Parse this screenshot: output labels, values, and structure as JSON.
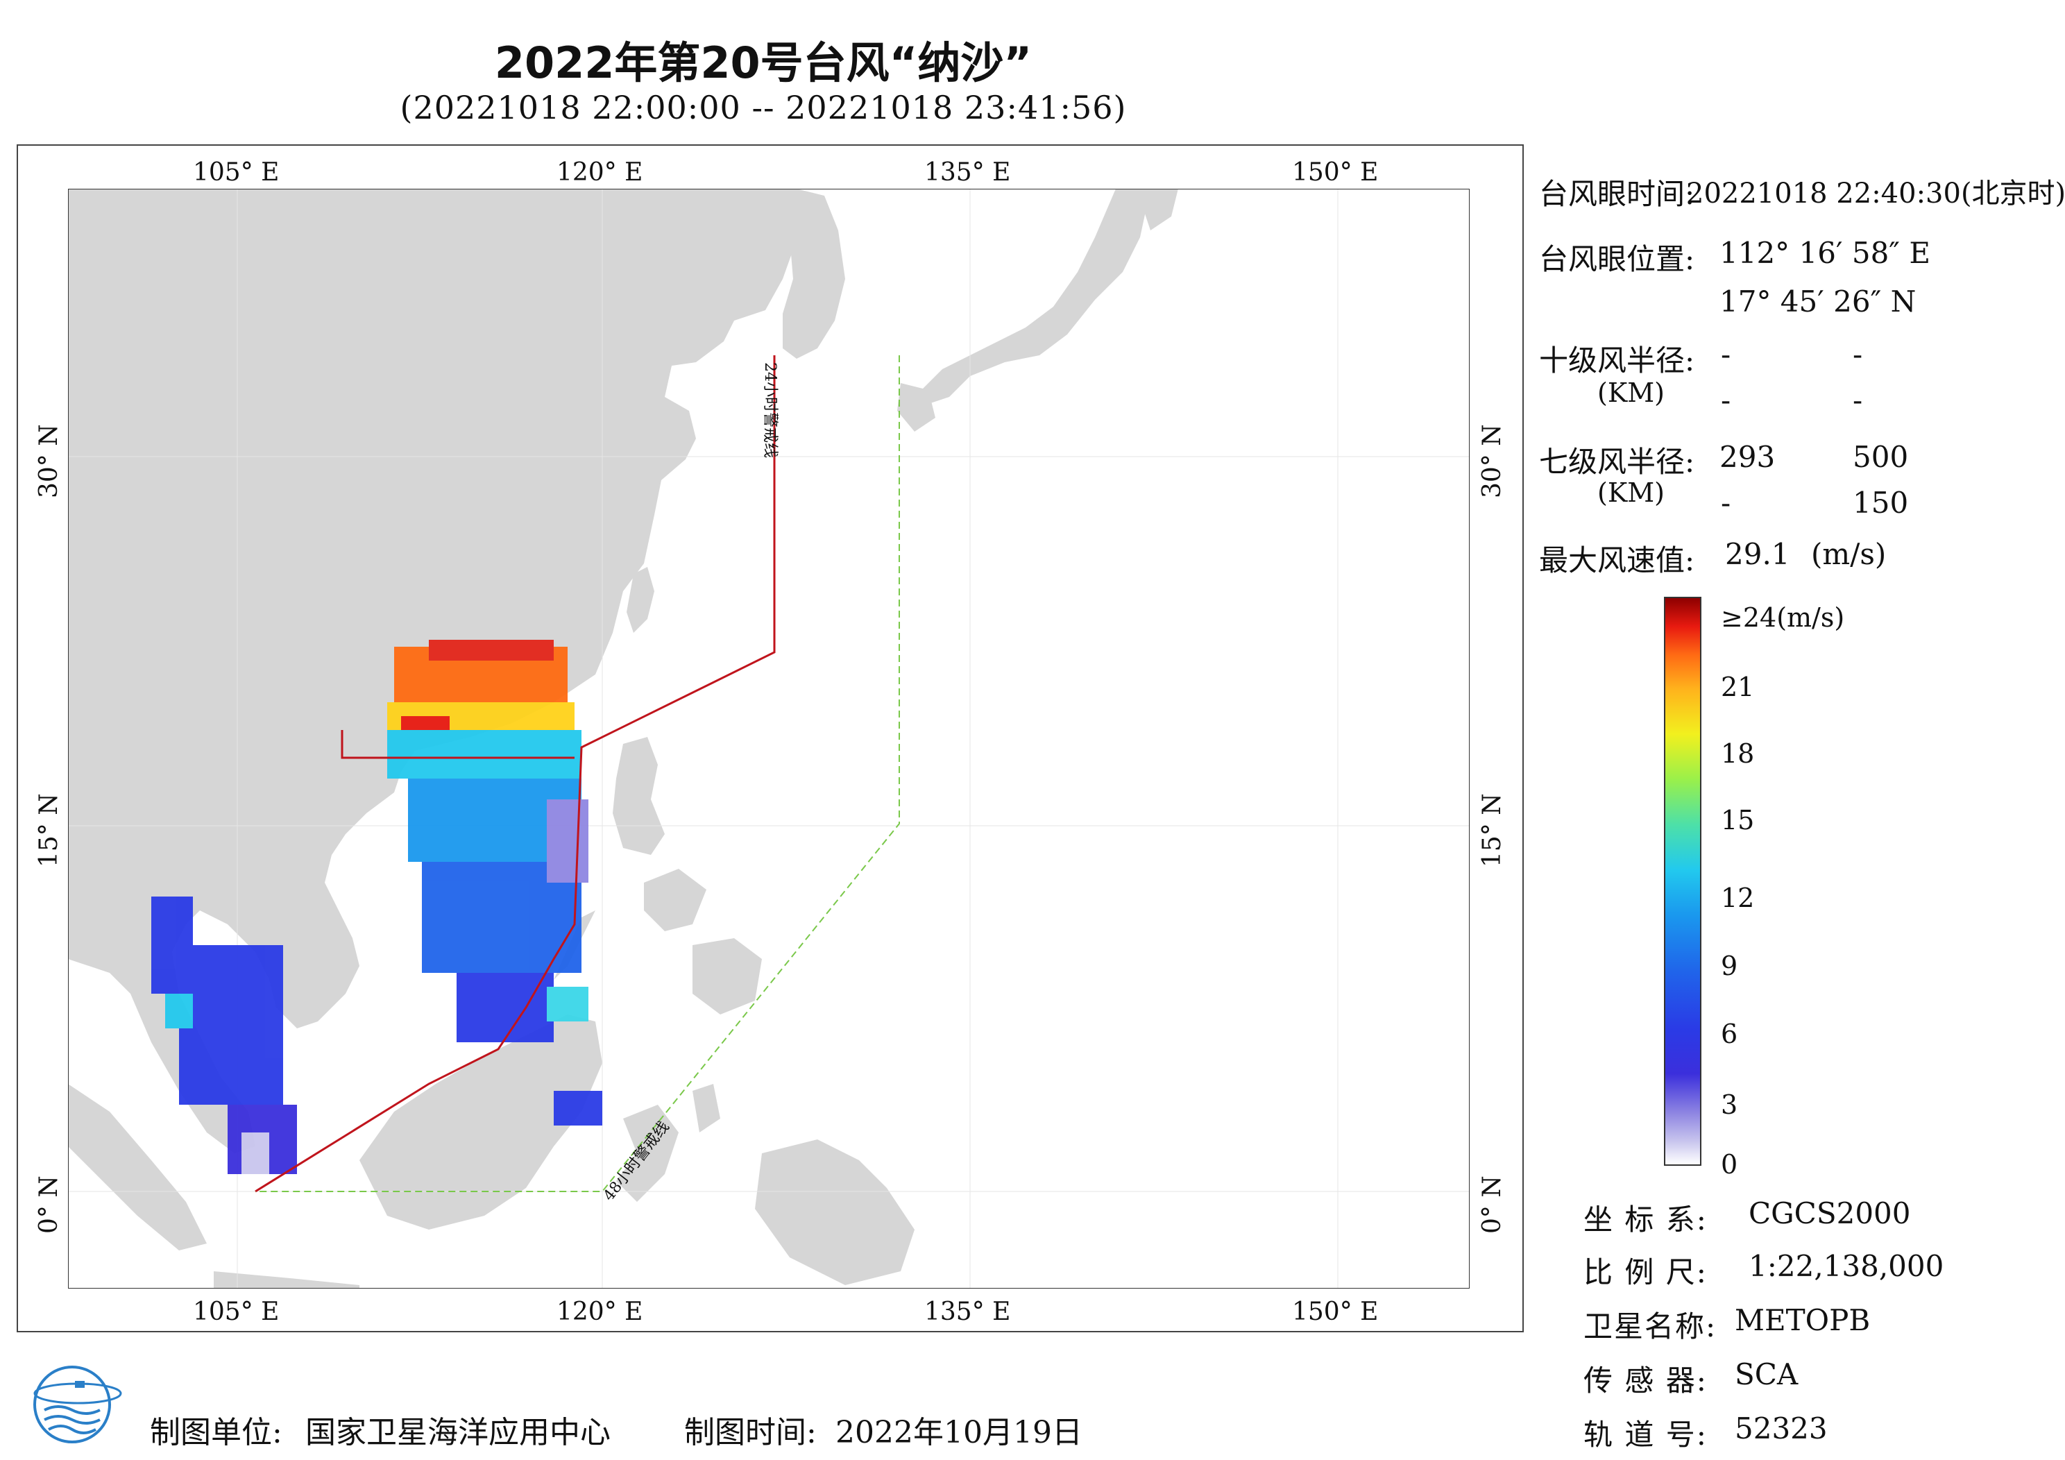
{
  "header": {
    "title": "2022年第20号台风“纳沙”",
    "subtitle": "(20221018 22:00:00 -- 20221018 23:41:56)"
  },
  "map": {
    "top_ticks": [
      "105° E",
      "120° E",
      "135° E",
      "150° E"
    ],
    "bottom_ticks": [
      "105° E",
      "120° E",
      "135° E",
      "150° E"
    ],
    "left_ticks": [
      "30° N",
      "15° N",
      "0° N"
    ],
    "right_ticks": [
      "30° N",
      "15° N",
      "0° N"
    ],
    "warning_line_24h": "24小时警戒线",
    "warning_line_48h": "48小时警戒线",
    "colors": {
      "land": "#d6d6d6",
      "sea": "#ffffff",
      "line24": "#c0141c",
      "line48": "#7ac84a"
    }
  },
  "info": {
    "eye_time_label": "台风眼时间:",
    "eye_time_value": "20221018 22:40:30(北京时)",
    "eye_pos_label": "台风眼位置:",
    "eye_lon": "112° 16′ 58″ E",
    "eye_lat": "17° 45′ 26″ N",
    "r10_label": "十级风半径:",
    "r10_unit": "(KM)",
    "r10_values": [
      "-",
      "-",
      "-",
      "-"
    ],
    "r7_label": "七级风半径:",
    "r7_unit": "(KM)",
    "r7_values": [
      "293",
      "500",
      "-",
      "150"
    ],
    "max_wind_label": "最大风速值:",
    "max_wind_value": "29.1",
    "max_wind_unit": "(m/s)"
  },
  "colorbar": {
    "labels": [
      "≥24(m/s)",
      "21",
      "18",
      "15",
      "12",
      "9",
      "6",
      "3",
      "0"
    ]
  },
  "meta": {
    "crs_label": "坐 标 系:",
    "crs_value": "CGCS2000",
    "scale_label": "比 例 尺:",
    "scale_value": "1:22,138,000",
    "satellite_label": "卫星名称:",
    "satellite_value": "METOPB",
    "sensor_label": "传 感 器:",
    "sensor_value": "SCA",
    "orbit_label": "轨 道 号:",
    "orbit_value": "52323"
  },
  "footer": {
    "org_label": "制图单位:",
    "org_value": "国家卫星海洋应用中心",
    "date_label": "制图时间:",
    "date_value": "2022年10月19日"
  }
}
